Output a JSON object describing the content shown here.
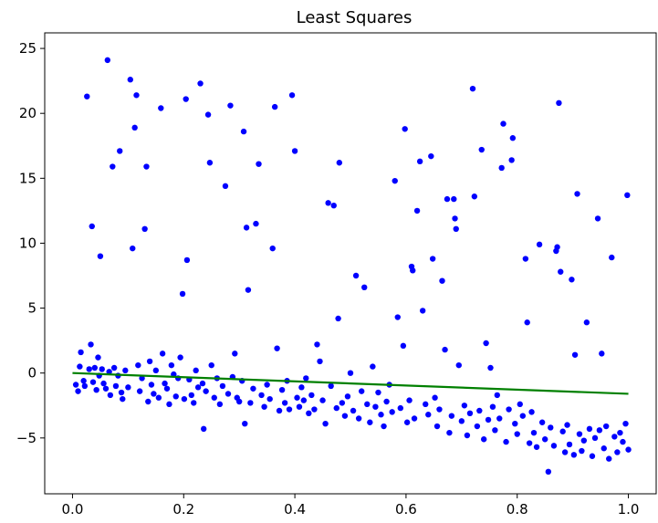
{
  "chart_data": {
    "type": "scatter",
    "title": "Least Squares",
    "xlabel": "",
    "ylabel": "",
    "xlim": [
      -0.05,
      1.05
    ],
    "ylim": [
      -9.3,
      26.2
    ],
    "xticks": [
      0.0,
      0.2,
      0.4,
      0.6,
      0.8,
      1.0
    ],
    "xtick_labels": [
      "0.0",
      "0.2",
      "0.4",
      "0.6",
      "0.8",
      "1.0"
    ],
    "yticks": [
      -5,
      0,
      5,
      10,
      15,
      20,
      25
    ],
    "ytick_labels": [
      "−5",
      "0",
      "5",
      "10",
      "15",
      "20",
      "25"
    ],
    "grid": false,
    "series": [
      {
        "kind": "scatter",
        "color": "#0000ff",
        "points": [
          [
            0.006,
            -0.9
          ],
          [
            0.01,
            -1.4
          ],
          [
            0.013,
            0.5
          ],
          [
            0.015,
            1.6
          ],
          [
            0.02,
            -0.6
          ],
          [
            0.022,
            -1.0
          ],
          [
            0.026,
            21.3
          ],
          [
            0.03,
            0.3
          ],
          [
            0.033,
            2.2
          ],
          [
            0.035,
            11.3
          ],
          [
            0.037,
            -0.7
          ],
          [
            0.04,
            0.4
          ],
          [
            0.043,
            -1.3
          ],
          [
            0.046,
            1.2
          ],
          [
            0.048,
            -0.2
          ],
          [
            0.05,
            9.0
          ],
          [
            0.053,
            0.3
          ],
          [
            0.056,
            -0.8
          ],
          [
            0.06,
            -1.2
          ],
          [
            0.063,
            24.1
          ],
          [
            0.066,
            0.1
          ],
          [
            0.068,
            -1.7
          ],
          [
            0.072,
            15.9
          ],
          [
            0.075,
            0.4
          ],
          [
            0.078,
            -1.0
          ],
          [
            0.082,
            -0.2
          ],
          [
            0.085,
            17.1
          ],
          [
            0.088,
            -1.5
          ],
          [
            0.09,
            -2.0
          ],
          [
            0.095,
            0.2
          ],
          [
            0.1,
            -1.1
          ],
          [
            0.104,
            22.6
          ],
          [
            0.108,
            9.6
          ],
          [
            0.112,
            18.9
          ],
          [
            0.115,
            21.4
          ],
          [
            0.118,
            0.6
          ],
          [
            0.121,
            -1.4
          ],
          [
            0.125,
            -0.4
          ],
          [
            0.13,
            11.1
          ],
          [
            0.133,
            15.9
          ],
          [
            0.136,
            -2.2
          ],
          [
            0.139,
            0.9
          ],
          [
            0.142,
            -0.9
          ],
          [
            0.146,
            -1.6
          ],
          [
            0.15,
            0.2
          ],
          [
            0.155,
            -1.9
          ],
          [
            0.159,
            20.4
          ],
          [
            0.162,
            1.5
          ],
          [
            0.166,
            -0.8
          ],
          [
            0.17,
            -1.2
          ],
          [
            0.174,
            -2.4
          ],
          [
            0.178,
            0.6
          ],
          [
            0.182,
            -0.1
          ],
          [
            0.186,
            -1.8
          ],
          [
            0.19,
            -0.4
          ],
          [
            0.194,
            1.2
          ],
          [
            0.198,
            6.1
          ],
          [
            0.201,
            -2.0
          ],
          [
            0.204,
            21.1
          ],
          [
            0.206,
            8.7
          ],
          [
            0.21,
            -0.5
          ],
          [
            0.214,
            -1.7
          ],
          [
            0.218,
            -2.3
          ],
          [
            0.222,
            0.2
          ],
          [
            0.226,
            -1.1
          ],
          [
            0.23,
            22.3
          ],
          [
            0.234,
            -0.8
          ],
          [
            0.236,
            -4.3
          ],
          [
            0.24,
            -1.4
          ],
          [
            0.244,
            19.9
          ],
          [
            0.247,
            16.2
          ],
          [
            0.25,
            0.6
          ],
          [
            0.255,
            -1.9
          ],
          [
            0.26,
            -0.4
          ],
          [
            0.265,
            -2.4
          ],
          [
            0.27,
            -1.0
          ],
          [
            0.275,
            14.4
          ],
          [
            0.28,
            -1.6
          ],
          [
            0.284,
            20.6
          ],
          [
            0.288,
            -0.3
          ],
          [
            0.292,
            1.5
          ],
          [
            0.296,
            -1.9
          ],
          [
            0.3,
            -2.2
          ],
          [
            0.305,
            -0.6
          ],
          [
            0.308,
            18.6
          ],
          [
            0.31,
            -3.9
          ],
          [
            0.313,
            11.2
          ],
          [
            0.316,
            6.4
          ],
          [
            0.32,
            -2.3
          ],
          [
            0.325,
            -1.2
          ],
          [
            0.33,
            11.5
          ],
          [
            0.335,
            16.1
          ],
          [
            0.34,
            -1.7
          ],
          [
            0.345,
            -2.6
          ],
          [
            0.35,
            -0.9
          ],
          [
            0.355,
            -2.0
          ],
          [
            0.36,
            9.6
          ],
          [
            0.364,
            20.5
          ],
          [
            0.368,
            1.9
          ],
          [
            0.372,
            -2.9
          ],
          [
            0.377,
            -1.3
          ],
          [
            0.382,
            -2.3
          ],
          [
            0.386,
            -0.6
          ],
          [
            0.39,
            -2.8
          ],
          [
            0.395,
            21.4
          ],
          [
            0.4,
            17.1
          ],
          [
            0.404,
            -1.9
          ],
          [
            0.408,
            -2.6
          ],
          [
            0.412,
            -1.1
          ],
          [
            0.416,
            -2.1
          ],
          [
            0.42,
            -0.4
          ],
          [
            0.425,
            -3.1
          ],
          [
            0.43,
            -1.7
          ],
          [
            0.435,
            -2.8
          ],
          [
            0.44,
            2.2
          ],
          [
            0.445,
            0.9
          ],
          [
            0.45,
            -2.1
          ],
          [
            0.455,
            -3.9
          ],
          [
            0.46,
            13.1
          ],
          [
            0.465,
            -1.0
          ],
          [
            0.47,
            12.9
          ],
          [
            0.475,
            -2.7
          ],
          [
            0.478,
            4.2
          ],
          [
            0.48,
            16.2
          ],
          [
            0.485,
            -2.3
          ],
          [
            0.49,
            -3.3
          ],
          [
            0.495,
            -1.8
          ],
          [
            0.5,
            0.0
          ],
          [
            0.505,
            -2.9
          ],
          [
            0.51,
            7.5
          ],
          [
            0.515,
            -3.5
          ],
          [
            0.52,
            -1.4
          ],
          [
            0.525,
            6.6
          ],
          [
            0.53,
            -2.4
          ],
          [
            0.535,
            -3.8
          ],
          [
            0.54,
            0.5
          ],
          [
            0.545,
            -2.6
          ],
          [
            0.55,
            -1.5
          ],
          [
            0.555,
            -3.2
          ],
          [
            0.56,
            -4.1
          ],
          [
            0.565,
            -2.2
          ],
          [
            0.57,
            -0.9
          ],
          [
            0.575,
            -3.0
          ],
          [
            0.58,
            14.8
          ],
          [
            0.585,
            4.3
          ],
          [
            0.59,
            -2.7
          ],
          [
            0.595,
            2.1
          ],
          [
            0.598,
            18.8
          ],
          [
            0.602,
            -3.8
          ],
          [
            0.606,
            -2.1
          ],
          [
            0.61,
            8.2
          ],
          [
            0.612,
            7.9
          ],
          [
            0.615,
            -3.5
          ],
          [
            0.62,
            12.5
          ],
          [
            0.625,
            16.3
          ],
          [
            0.63,
            4.8
          ],
          [
            0.635,
            -2.4
          ],
          [
            0.64,
            -3.2
          ],
          [
            0.645,
            16.7
          ],
          [
            0.648,
            8.8
          ],
          [
            0.652,
            -1.9
          ],
          [
            0.656,
            -4.1
          ],
          [
            0.66,
            -2.8
          ],
          [
            0.665,
            7.1
          ],
          [
            0.67,
            1.8
          ],
          [
            0.674,
            13.4
          ],
          [
            0.678,
            -4.6
          ],
          [
            0.682,
            -3.3
          ],
          [
            0.686,
            13.4
          ],
          [
            0.688,
            11.9
          ],
          [
            0.69,
            11.1
          ],
          [
            0.695,
            0.6
          ],
          [
            0.7,
            -3.7
          ],
          [
            0.705,
            -2.5
          ],
          [
            0.71,
            -4.8
          ],
          [
            0.715,
            -3.1
          ],
          [
            0.72,
            21.9
          ],
          [
            0.723,
            13.6
          ],
          [
            0.728,
            -4.1
          ],
          [
            0.732,
            -2.9
          ],
          [
            0.736,
            17.2
          ],
          [
            0.74,
            -5.1
          ],
          [
            0.744,
            2.3
          ],
          [
            0.748,
            -3.6
          ],
          [
            0.752,
            0.4
          ],
          [
            0.756,
            -2.6
          ],
          [
            0.76,
            -4.4
          ],
          [
            0.764,
            -1.7
          ],
          [
            0.768,
            -3.5
          ],
          [
            0.772,
            15.8
          ],
          [
            0.775,
            19.2
          ],
          [
            0.78,
            -5.3
          ],
          [
            0.785,
            -2.8
          ],
          [
            0.79,
            16.4
          ],
          [
            0.792,
            18.1
          ],
          [
            0.796,
            -3.9
          ],
          [
            0.8,
            -4.7
          ],
          [
            0.805,
            -2.4
          ],
          [
            0.81,
            -3.3
          ],
          [
            0.815,
            8.8
          ],
          [
            0.818,
            3.9
          ],
          [
            0.822,
            -5.4
          ],
          [
            0.826,
            -3.0
          ],
          [
            0.83,
            -4.6
          ],
          [
            0.835,
            -5.7
          ],
          [
            0.84,
            9.9
          ],
          [
            0.845,
            -3.8
          ],
          [
            0.85,
            -5.1
          ],
          [
            0.856,
            -7.6
          ],
          [
            0.86,
            -4.2
          ],
          [
            0.866,
            -5.6
          ],
          [
            0.87,
            9.4
          ],
          [
            0.872,
            9.7
          ],
          [
            0.875,
            20.8
          ],
          [
            0.878,
            7.8
          ],
          [
            0.882,
            -4.5
          ],
          [
            0.886,
            -6.1
          ],
          [
            0.89,
            -4.0
          ],
          [
            0.894,
            -5.5
          ],
          [
            0.898,
            7.2
          ],
          [
            0.902,
            -6.3
          ],
          [
            0.904,
            1.4
          ],
          [
            0.908,
            13.8
          ],
          [
            0.912,
            -4.7
          ],
          [
            0.916,
            -6.0
          ],
          [
            0.92,
            -5.2
          ],
          [
            0.925,
            3.9
          ],
          [
            0.93,
            -4.3
          ],
          [
            0.935,
            -6.4
          ],
          [
            0.94,
            -5.0
          ],
          [
            0.945,
            11.9
          ],
          [
            0.948,
            -4.4
          ],
          [
            0.952,
            1.5
          ],
          [
            0.956,
            -5.8
          ],
          [
            0.96,
            -4.1
          ],
          [
            0.965,
            -6.6
          ],
          [
            0.97,
            8.9
          ],
          [
            0.975,
            -4.9
          ],
          [
            0.98,
            -6.1
          ],
          [
            0.985,
            -4.6
          ],
          [
            0.99,
            -5.3
          ],
          [
            0.995,
            -3.9
          ],
          [
            0.998,
            13.7
          ],
          [
            1.0,
            -5.9
          ]
        ]
      },
      {
        "kind": "line",
        "color": "#008000",
        "x": [
          0.0,
          1.0
        ],
        "y": [
          0.0,
          -1.6
        ]
      }
    ]
  }
}
